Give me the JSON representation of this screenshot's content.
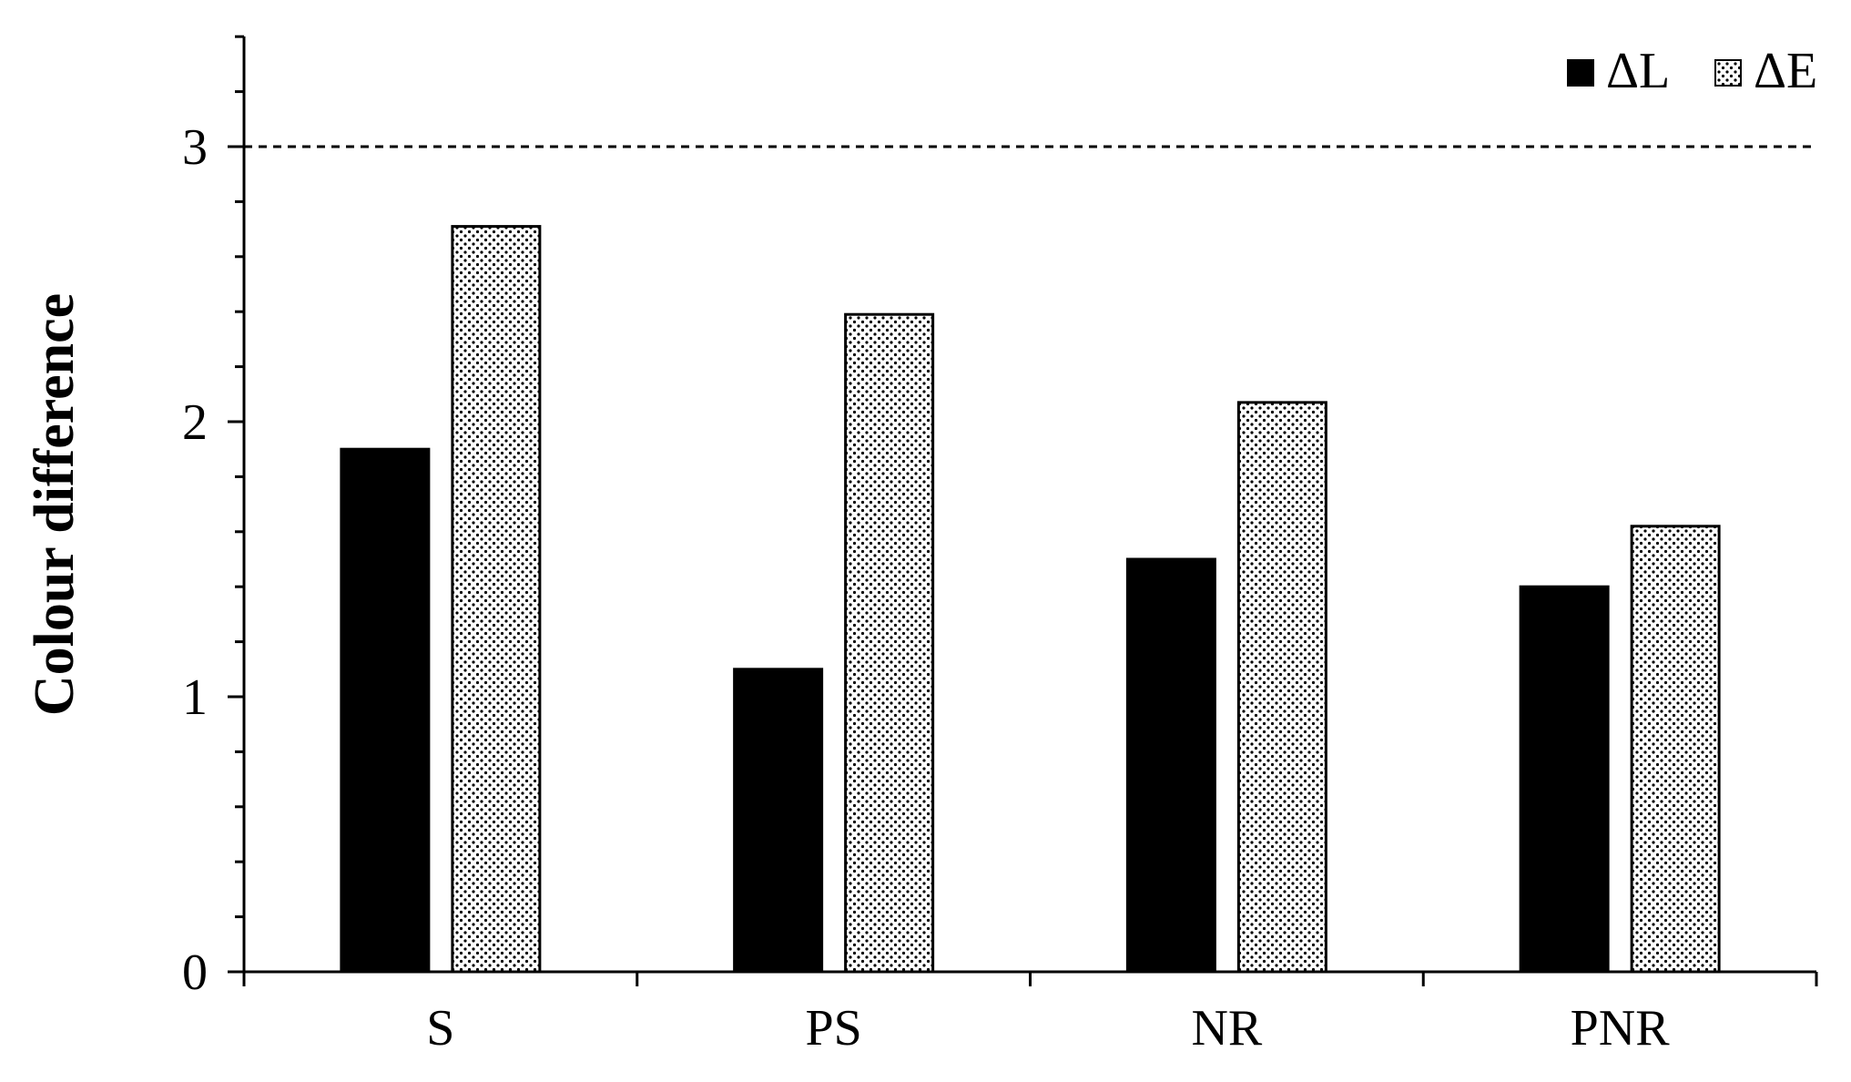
{
  "chart_data": {
    "type": "bar",
    "categories": [
      "S",
      "PS",
      "NR",
      "PNR"
    ],
    "series": [
      {
        "name": "ΔL",
        "values": [
          1.9,
          1.1,
          1.5,
          1.4
        ],
        "fill": "solid-black"
      },
      {
        "name": "ΔE",
        "values": [
          2.71,
          2.39,
          2.07,
          1.62
        ],
        "fill": "dotted-pattern"
      }
    ],
    "title": "",
    "xlabel": "",
    "ylabel": "Colour difference",
    "ylim": [
      0,
      3.4
    ],
    "yticks": [
      "0",
      "1",
      "2",
      "3"
    ],
    "reference_line": {
      "y": 3,
      "style": "dashed"
    },
    "legend_position": "top-right",
    "grid": false,
    "colors": {
      "bar_solid": "#000000",
      "bar_pattern_bg": "#ffffff",
      "axis": "#000000"
    }
  }
}
